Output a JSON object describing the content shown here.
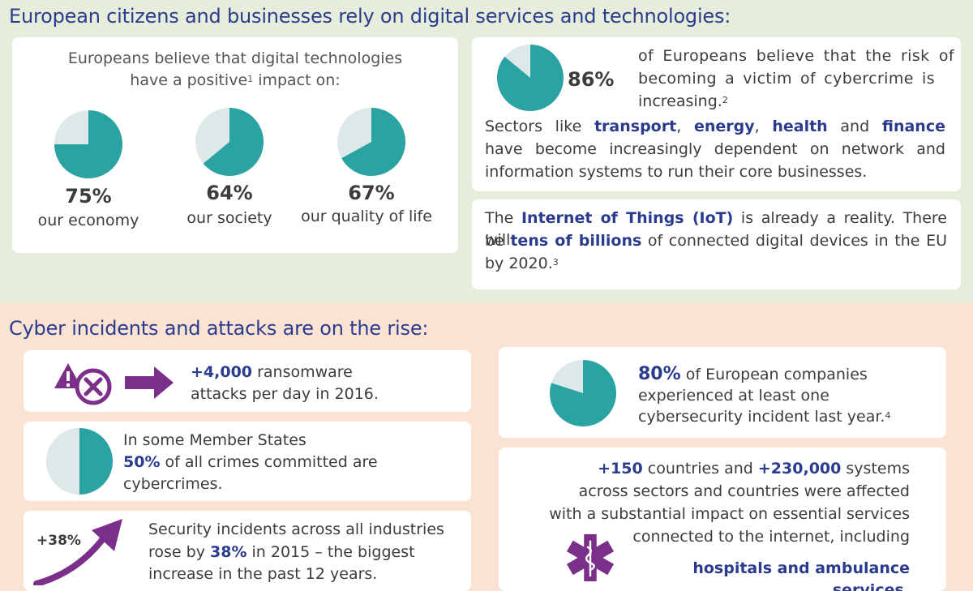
{
  "section_top": {
    "heading": "European citizens and businesses rely on digital services and technologies:",
    "belief_card": {
      "intro_line1": "Europeans believe that digital technologies",
      "intro_line2_a": "have a positive",
      "intro_line2_sup": "1",
      "intro_line2_b": " impact on:",
      "items": [
        {
          "pct": "75%",
          "label": "our economy",
          "value": 0.75
        },
        {
          "pct": "64%",
          "label": "our society",
          "value": 0.64
        },
        {
          "pct": "67%",
          "label": "our quality of life",
          "value": 0.67
        }
      ]
    },
    "cybercrime_card": {
      "pct": "86%",
      "pie_value": 0.86,
      "text_line1": "of Europeans believe that the risk of",
      "text_line2": "becoming a victim of cybercrime is",
      "text_line3": "increasing.",
      "sup": "2",
      "sectors_pre": "Sectors like ",
      "sector1": "transport",
      "sep1": ", ",
      "sector2": "energy",
      "sep2": ", ",
      "sector3": "health",
      "sep3": " and ",
      "sector4": "finance",
      "sectors_line2": "have become increasingly dependent on network and",
      "sectors_line3": "information systems to run their core businesses."
    },
    "iot_card": {
      "pre": "The ",
      "iot": "Internet of Things (IoT)",
      "post1": " is already a reality. There will",
      "line2_pre": "be ",
      "billions": "tens of billions",
      "line2_post": " of connected digital devices in the EU",
      "line3": "by 2020.",
      "sup": "3"
    }
  },
  "section_bottom": {
    "heading": "Cyber incidents and attacks are on the rise:",
    "ransomware_card": {
      "num": "+4,000",
      "line1_post": " ransomware",
      "line2": "attacks per day in 2016."
    },
    "crimes_card": {
      "pie_value": 0.5,
      "line1": "In some Member States",
      "pct": "50%",
      "line2_post": " of all crimes committed are",
      "line3": "cybercrimes."
    },
    "security_card": {
      "arrow_label": "+38%",
      "line1": "Security incidents across all industries",
      "line2_pre": "rose by ",
      "pct": "38%",
      "line2_post": " in 2015 – the biggest",
      "line3": "increase in the past 12 years."
    },
    "companies_card": {
      "pie_value": 0.8,
      "pct": "80%",
      "line1_post": " of European companies",
      "line2": "experienced at least one",
      "line3": "cybersecurity incident last year.",
      "sup": "4"
    },
    "countries_card": {
      "num1": "+150",
      "mid": " countries and ",
      "num2": "+230,000",
      "post": " systems",
      "line2": "across sectors and countries were affected",
      "line3": "with a substantial impact on essential services",
      "line4": "connected to the internet, including",
      "line5": "hospitals and ambulance services."
    }
  },
  "colors": {
    "teal": "#2aa3a3",
    "pie_bg": "#dde9e8",
    "purple": "#7c2f8a",
    "navy": "#2b3c8f",
    "band_green": "#e6eedb",
    "band_peach": "#fbe3d4"
  },
  "icons": [
    "warning-icon",
    "no-entry-icon",
    "arrow-right-icon",
    "trend-arrow-icon",
    "star-of-life-icon"
  ]
}
